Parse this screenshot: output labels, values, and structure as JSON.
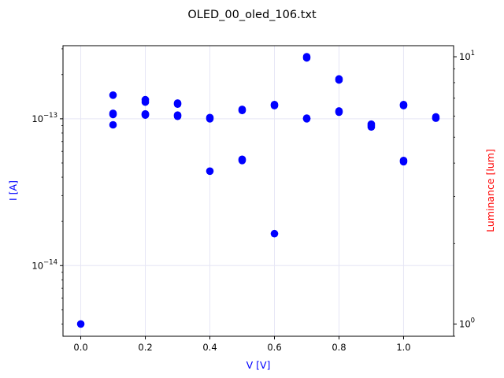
{
  "chart_data": {
    "type": "scatter",
    "title": "OLED_00_oled_106.txt",
    "xlabel": "V [V]",
    "ylabel_left": "I [A]",
    "ylabel_right": "Luminance [lum]",
    "xlim": [
      -0.055,
      1.155
    ],
    "ylim_left": [
      3.3e-15,
      3.15e-13
    ],
    "ylim_right": [
      0.9,
      11.0
    ],
    "yscale_left": "log",
    "yscale_right": "log",
    "grid": true,
    "x_ticks": [
      0.0,
      0.2,
      0.4,
      0.6,
      0.8,
      1.0
    ],
    "x_tick_labels": [
      "0.0",
      "0.2",
      "0.4",
      "0.6",
      "0.8",
      "1.0"
    ],
    "y_left_ticks": [
      1e-13,
      1e-14
    ],
    "y_left_tick_bases": [
      "10",
      "10"
    ],
    "y_left_tick_exponents": [
      "−13",
      "−14"
    ],
    "y_right_ticks": [
      10,
      1
    ],
    "y_right_tick_bases": [
      "10",
      "10"
    ],
    "y_right_tick_exponents": [
      "1",
      "0"
    ],
    "colors": {
      "series": "#0000ff",
      "left_label": "#0000ff",
      "right_label": "#ff0000",
      "grid": "#e6e6f5"
    },
    "series": [
      {
        "axis": "left",
        "x": [
          0.0,
          0.1,
          0.1,
          0.1,
          0.1,
          0.2,
          0.2,
          0.2,
          0.2,
          0.2,
          0.3,
          0.3,
          0.3,
          0.3,
          0.4,
          0.4,
          0.4,
          0.5,
          0.5,
          0.5,
          0.5,
          0.6,
          0.6,
          0.6,
          0.7,
          0.7,
          0.7,
          0.7,
          0.8,
          0.8,
          0.8,
          0.8,
          0.9,
          0.9,
          0.9,
          1.0,
          1.0,
          1.0,
          1.0,
          1.1,
          1.1
        ],
        "y": [
          4e-15,
          1.45e-13,
          1.09e-13,
          1.07e-13,
          9.1e-14,
          1.35e-13,
          1.3e-13,
          1.08e-13,
          1.06e-13,
          1.07e-13,
          1.28e-13,
          1.26e-13,
          1.06e-13,
          1.04e-13,
          1.02e-13,
          1e-13,
          4.4e-14,
          1.16e-13,
          1.14e-13,
          5.3e-14,
          5.2e-14,
          1.25e-13,
          1.23e-13,
          1.65e-14,
          2.65e-13,
          2.6e-13,
          1.01e-13,
          1e-13,
          1.87e-13,
          1.84e-13,
          1.13e-13,
          1.11e-13,
          9.2e-14,
          9e-14,
          8.8e-14,
          1.25e-13,
          1.23e-13,
          5.2e-14,
          5.1e-14,
          1.03e-13,
          1.01e-13
        ]
      }
    ]
  }
}
